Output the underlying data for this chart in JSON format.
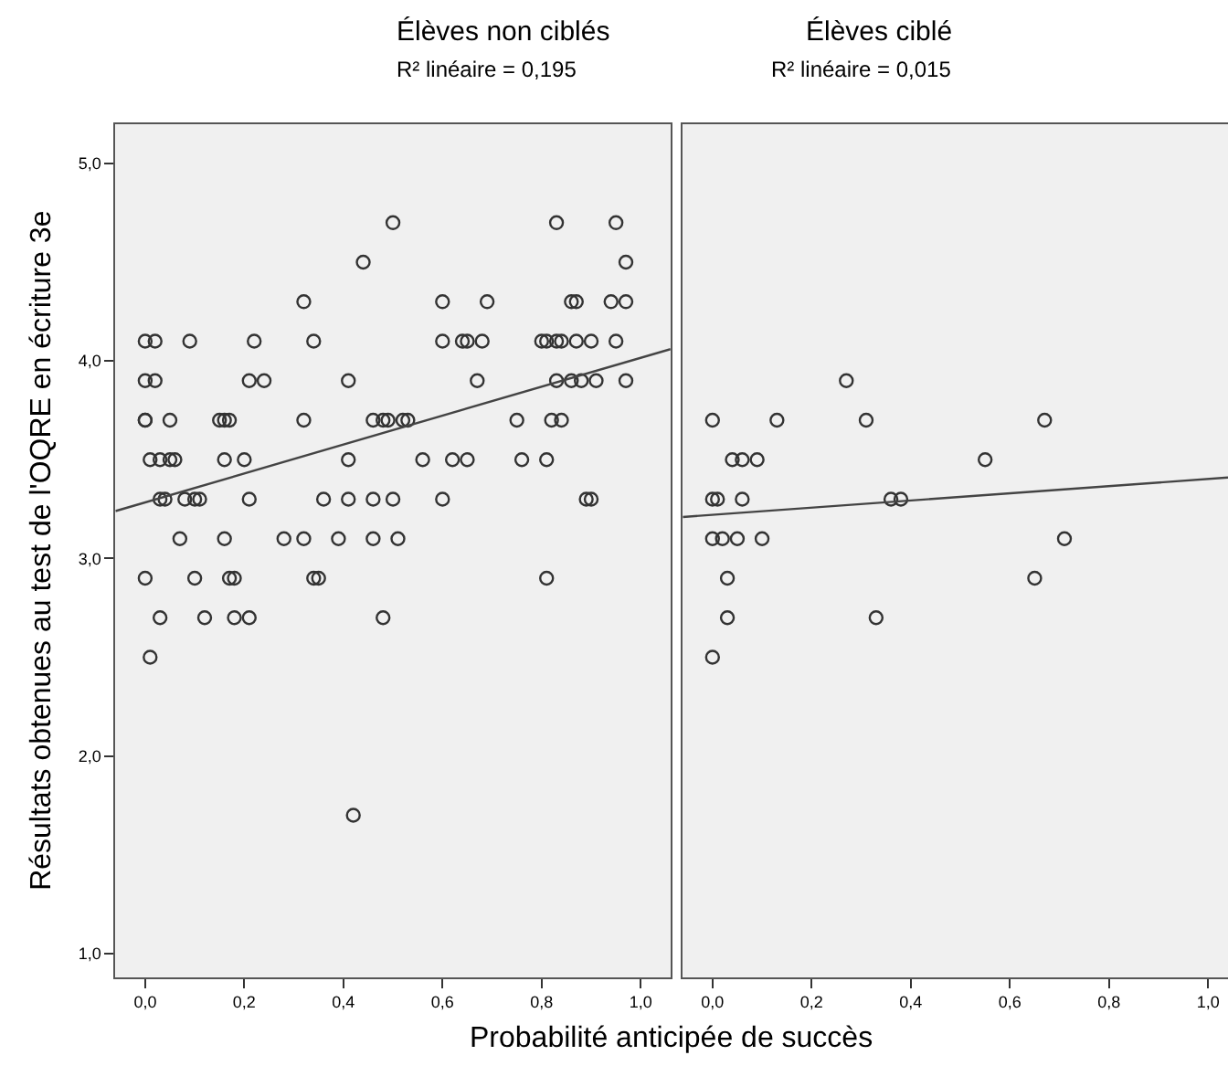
{
  "chart_data": [
    {
      "type": "scatter",
      "title": "Élèves non ciblés",
      "subtitle": "R² linéaire = 0,195",
      "xlabel": "Probabilité anticipée de succès",
      "ylabel": "Résultats obtenues au test de l'OQRE en écriture 3e",
      "xlim": [
        -0.06,
        1.06
      ],
      "ylim": [
        0.88,
        5.2
      ],
      "xticks": [
        {
          "value": 0,
          "label": "0,0"
        },
        {
          "value": 0.2,
          "label": "0,2"
        },
        {
          "value": 0.4,
          "label": "0,4"
        },
        {
          "value": 0.6,
          "label": "0,6"
        },
        {
          "value": 0.8,
          "label": "0,8"
        },
        {
          "value": 1,
          "label": "1,0"
        }
      ],
      "yticks": [
        {
          "value": 1,
          "label": "1,0"
        },
        {
          "value": 2,
          "label": "2,0"
        },
        {
          "value": 3,
          "label": "3,0"
        },
        {
          "value": 4,
          "label": "4,0"
        },
        {
          "value": 5,
          "label": "5,0"
        }
      ],
      "grid": false,
      "series": [
        {
          "marker": "circle",
          "color": "#333333",
          "x": [
            0.5,
            0.83,
            0.95,
            0.44,
            0.97,
            0.32,
            0.6,
            0.69,
            0.86,
            0.87,
            0.94,
            0.97,
            0.0,
            0.02,
            0.09,
            0.22,
            0.34,
            0.6,
            0.64,
            0.65,
            0.68,
            0.8,
            0.81,
            0.83,
            0.84,
            0.87,
            0.9,
            0.95,
            0.0,
            0.02,
            0.21,
            0.24,
            0.41,
            0.67,
            0.83,
            0.86,
            0.88,
            0.91,
            0.97,
            0.0,
            0.0,
            0.05,
            0.15,
            0.16,
            0.17,
            0.32,
            0.46,
            0.48,
            0.49,
            0.52,
            0.53,
            0.75,
            0.82,
            0.84,
            0.01,
            0.03,
            0.05,
            0.06,
            0.16,
            0.2,
            0.41,
            0.56,
            0.62,
            0.65,
            0.76,
            0.81,
            0.03,
            0.04,
            0.08,
            0.1,
            0.11,
            0.21,
            0.36,
            0.41,
            0.46,
            0.5,
            0.6,
            0.89,
            0.9,
            0.07,
            0.16,
            0.28,
            0.32,
            0.39,
            0.46,
            0.51,
            0.0,
            0.1,
            0.17,
            0.18,
            0.34,
            0.35,
            0.81,
            0.03,
            0.12,
            0.18,
            0.21,
            0.48,
            0.01,
            0.42
          ],
          "values": [
            4.7,
            4.7,
            4.7,
            4.5,
            4.5,
            4.3,
            4.3,
            4.3,
            4.3,
            4.3,
            4.3,
            4.3,
            4.1,
            4.1,
            4.1,
            4.1,
            4.1,
            4.1,
            4.1,
            4.1,
            4.1,
            4.1,
            4.1,
            4.1,
            4.1,
            4.1,
            4.1,
            4.1,
            3.9,
            3.9,
            3.9,
            3.9,
            3.9,
            3.9,
            3.9,
            3.9,
            3.9,
            3.9,
            3.9,
            3.7,
            3.7,
            3.7,
            3.7,
            3.7,
            3.7,
            3.7,
            3.7,
            3.7,
            3.7,
            3.7,
            3.7,
            3.7,
            3.7,
            3.7,
            3.5,
            3.5,
            3.5,
            3.5,
            3.5,
            3.5,
            3.5,
            3.5,
            3.5,
            3.5,
            3.5,
            3.5,
            3.3,
            3.3,
            3.3,
            3.3,
            3.3,
            3.3,
            3.3,
            3.3,
            3.3,
            3.3,
            3.3,
            3.3,
            3.3,
            3.1,
            3.1,
            3.1,
            3.1,
            3.1,
            3.1,
            3.1,
            2.9,
            2.9,
            2.9,
            2.9,
            2.9,
            2.9,
            2.9,
            2.7,
            2.7,
            2.7,
            2.7,
            2.7,
            2.5,
            1.7
          ]
        },
        {
          "type": "line",
          "color": "#444444",
          "x": [
            -0.06,
            1.06
          ],
          "values": [
            3.24,
            4.06
          ]
        }
      ]
    },
    {
      "type": "scatter",
      "title": "Élèves ciblé",
      "subtitle": "R² linéaire = 0,015",
      "xlim": [
        -0.06,
        1.04
      ],
      "ylim": [
        0.88,
        5.2
      ],
      "xticks": [
        {
          "value": 0,
          "label": "0,0"
        },
        {
          "value": 0.2,
          "label": "0,2"
        },
        {
          "value": 0.4,
          "label": "0,4"
        },
        {
          "value": 0.6,
          "label": "0,6"
        },
        {
          "value": 0.8,
          "label": "0,8"
        },
        {
          "value": 1,
          "label": "1,0"
        }
      ],
      "tick_labels": "x",
      "grid": false,
      "series": [
        {
          "marker": "circle",
          "color": "#333333",
          "x": [
            0.27,
            0.0,
            0.13,
            0.31,
            0.67,
            0.04,
            0.06,
            0.09,
            0.55,
            0.0,
            0.01,
            0.06,
            0.36,
            0.38,
            0.0,
            0.02,
            0.05,
            0.1,
            0.71,
            0.03,
            0.65,
            0.03,
            0.33,
            0.0
          ],
          "values": [
            3.9,
            3.7,
            3.7,
            3.7,
            3.7,
            3.5,
            3.5,
            3.5,
            3.5,
            3.3,
            3.3,
            3.3,
            3.3,
            3.3,
            3.1,
            3.1,
            3.1,
            3.1,
            3.1,
            2.9,
            2.9,
            2.7,
            2.7,
            2.5
          ]
        },
        {
          "type": "line",
          "color": "#444444",
          "x": [
            -0.06,
            1.04
          ],
          "values": [
            3.21,
            3.41
          ]
        }
      ]
    }
  ]
}
